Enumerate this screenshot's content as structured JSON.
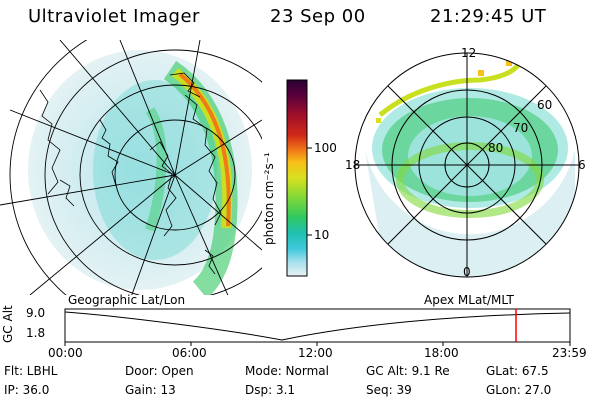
{
  "header": {
    "instrument": "Ultraviolet Imager",
    "date": "23 Sep 00",
    "time": "21:29:45 UT"
  },
  "colorbar": {
    "unit_label": "photon cm⁻²s⁻¹",
    "ticks": [
      "100",
      "10"
    ],
    "colors": [
      "#2a0032",
      "#5a003c",
      "#8a0a28",
      "#b81818",
      "#e03a10",
      "#f07a18",
      "#f8b818",
      "#e8e020",
      "#b8e020",
      "#70d838",
      "#30c860",
      "#20c0b0",
      "#30c8d8",
      "#90dce8",
      "#d8ecf0"
    ]
  },
  "left_panel": {
    "caption": "Geographic Lat/Lon"
  },
  "right_panel": {
    "caption": "Apex MLat/MLT",
    "mlt_labels": [
      "12",
      "18",
      "6",
      "0"
    ],
    "mlat_labels": [
      "60",
      "70",
      "80"
    ]
  },
  "timeline": {
    "ylabel": "GC Alt",
    "ytick_top": "9.0",
    "ytick_bottom": "1.8",
    "xticks": [
      "00:00",
      "06:00",
      "12:00",
      "18:00",
      "23:59"
    ],
    "marker_color": "#ff0000"
  },
  "footer": {
    "filter": "Flt: LBHL",
    "door": "Door: Open",
    "mode": "Mode: Normal",
    "gc_alt": "GC Alt: 9.1 Re",
    "glat": "GLat:  67.5",
    "ip": "IP: 36.0",
    "gain": "Gain: 13",
    "dsp": "Dsp:     3.1",
    "seq": "Seq: 39",
    "glon": "GLon:  27.0"
  }
}
